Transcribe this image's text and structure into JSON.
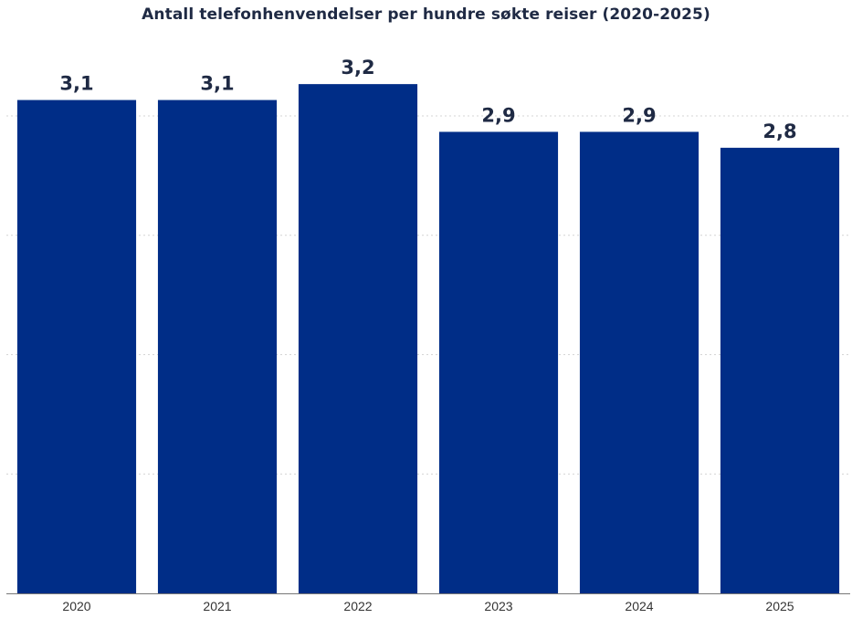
{
  "chart_data": {
    "type": "bar",
    "title": "Antall telefonhenvendelser per hundre søkte reiser (2020-2025)",
    "categories": [
      "2020",
      "2021",
      "2022",
      "2023",
      "2024",
      "2025"
    ],
    "values": [
      3.1,
      3.1,
      3.2,
      2.9,
      2.9,
      2.8
    ],
    "data_labels": [
      "3,1",
      "3,1",
      "3,2",
      "2,9",
      "2,9",
      "2,8"
    ],
    "xlabel": "",
    "ylabel": "",
    "ylim": [
      0,
      3.0
    ],
    "grid": true,
    "legend": "none",
    "colors": {
      "bar": "#002D87",
      "grid": "#d4d4d4",
      "axis": "#777777",
      "text": "#1f2a44"
    }
  }
}
